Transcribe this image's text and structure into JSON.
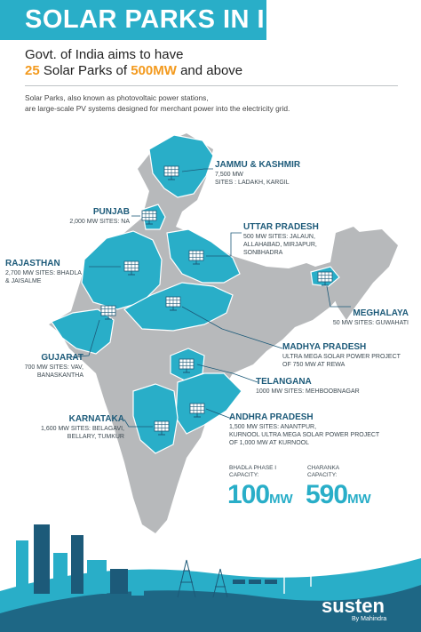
{
  "header": {
    "title": "SOLAR PARKS IN INDIA",
    "subtitle_line1": "Govt. of India aims to have",
    "subtitle_line2_count": "25",
    "subtitle_line2_mid": " Solar Parks of ",
    "subtitle_line2_capacity": "500MW",
    "subtitle_line2_end": " and above",
    "intro_line1": "Solar Parks, also known as photovoltaic power stations,",
    "intro_line2": "are large-scale PV systems designed for merchant power into the electricity grid."
  },
  "states": [
    {
      "name": "JAMMU & KASHMIR",
      "line1": "7,500 MW",
      "line2": "SITES : LADAKH, KARGIL",
      "line3": ""
    },
    {
      "name": "PUNJAB",
      "line1": "2,000 MW SITES: NA",
      "line2": "",
      "line3": ""
    },
    {
      "name": "UTTAR PRADESH",
      "line1": "500 MW SITES: JALAUN,",
      "line2": "ALLAHABAD, MIRJAPUR,",
      "line3": "SONBHADRA"
    },
    {
      "name": "RAJASTHAN",
      "line1": "2,700 MW SITES: BHADLA",
      "line2": "& JAISALME",
      "line3": ""
    },
    {
      "name": "MEGHALAYA",
      "line1": "50 MW SITES: GUWAHATI",
      "line2": "",
      "line3": ""
    },
    {
      "name": "MADHYA PRADESH",
      "line1": "ULTRA MEGA SOLAR POWER PROJECT",
      "line2": "OF 750 MW AT REWA",
      "line3": ""
    },
    {
      "name": "GUJARAT",
      "line1": "700 MW SITES: VAV,",
      "line2": "BANASKANTHA",
      "line3": ""
    },
    {
      "name": "TELANGANA",
      "line1": "1000 MW SITES: MEHBOOBNAGAR",
      "line2": "",
      "line3": ""
    },
    {
      "name": "KARNATAKA",
      "line1": "1,600 MW SITES: BELAGAVI,",
      "line2": "BELLARY, TUMKUR",
      "line3": ""
    },
    {
      "name": "ANDHRA PRADESH",
      "line1": "1,500 MW SITES: ANANTPUR,",
      "line2": "KURNOOL ULTRA MEGA SOLAR POWER PROJECT",
      "line3": "OF 1,000 MW AT KURNOOL"
    }
  ],
  "capacities": [
    {
      "label_line1": "BHADLA PHASE I",
      "label_line2": "CAPACITY:",
      "value": "100",
      "unit": "MW"
    },
    {
      "label_line1": "CHARANKA",
      "label_line2": "CAPACITY:",
      "value": "590",
      "unit": "MW"
    }
  ],
  "brand": {
    "name": "susten",
    "tagline": "By Mahindra"
  },
  "colors": {
    "accent": "#29aec8",
    "highlight": "#f39a1e",
    "map_base": "#b7b9bb",
    "label_text": "#1c5a79"
  },
  "icons": [
    "solar-panel-icon",
    "wind-turbine-icon",
    "skyline-illustration",
    "pylon-icon"
  ]
}
